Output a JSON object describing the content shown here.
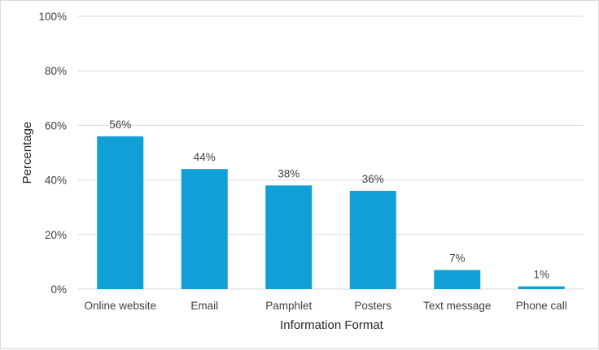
{
  "chart_data": {
    "type": "bar",
    "categories": [
      "Online website",
      "Email",
      "Pamphlet",
      "Posters",
      "Text message",
      "Phone call"
    ],
    "values": [
      56,
      44,
      38,
      36,
      7,
      1
    ],
    "data_labels": [
      "56%",
      "44%",
      "38%",
      "36%",
      "7%",
      "1%"
    ],
    "xlabel": "Information Format",
    "ylabel": "Percentage",
    "ylim": [
      0,
      100
    ],
    "yticks": [
      0,
      20,
      40,
      60,
      80,
      100
    ],
    "ytick_labels": [
      "0%",
      "20%",
      "40%",
      "60%",
      "80%",
      "100%"
    ],
    "grid": true,
    "bar_color": "#119fd8",
    "grid_color": "#d9d9d9"
  }
}
